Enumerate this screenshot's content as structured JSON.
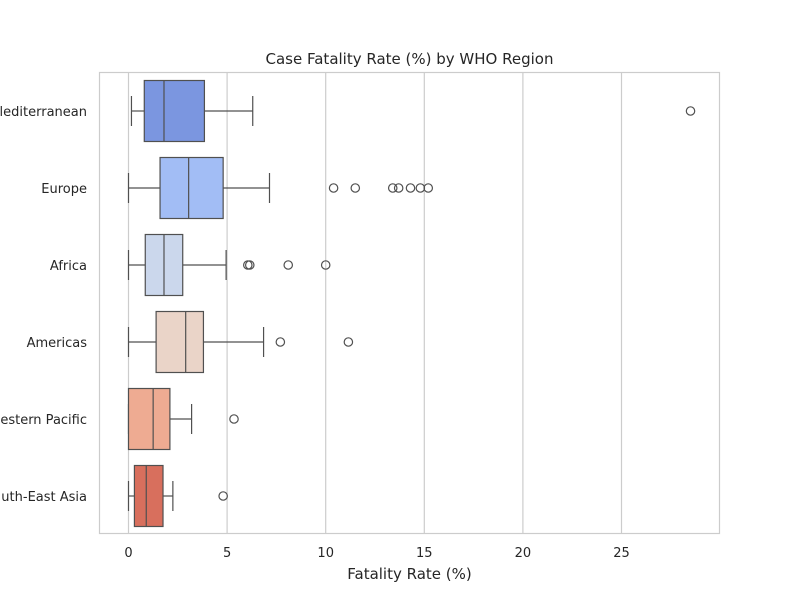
{
  "chart_data": {
    "type": "boxplot",
    "orientation": "horizontal",
    "title": "Case Fatality Rate (%) by WHO Region",
    "xlabel": "Fatality Rate (%)",
    "ylabel": "",
    "xlim": [
      -1.5,
      30
    ],
    "xticks": [
      0,
      5,
      10,
      15,
      20,
      25
    ],
    "grid": "vertical",
    "categories": [
      "Eastern Mediterranean",
      "Europe",
      "Africa",
      "Americas",
      "Western Pacific",
      "South-East Asia"
    ],
    "category_labels_shown": [
      "lediterranean",
      "Europe",
      "Africa",
      "Americas",
      "estern Pacific",
      "uth-East Asia"
    ],
    "boxes": [
      {
        "region": "Eastern Mediterranean",
        "whisker_low": 0.15,
        "q1": 0.8,
        "median": 1.8,
        "q3": 3.85,
        "whisker_high": 6.3,
        "outliers": [
          28.5
        ],
        "color": "#7b96e0"
      },
      {
        "region": "Europe",
        "whisker_low": 0.0,
        "q1": 1.6,
        "median": 3.05,
        "q3": 4.8,
        "whisker_high": 7.15,
        "outliers": [
          10.4,
          11.5,
          13.4,
          13.7,
          14.3,
          14.8,
          15.2
        ],
        "color": "#a2bdf5"
      },
      {
        "region": "Africa",
        "whisker_low": 0.0,
        "q1": 0.85,
        "median": 1.8,
        "q3": 2.75,
        "whisker_high": 4.95,
        "outliers": [
          6.05,
          6.15,
          8.1,
          10.0
        ],
        "color": "#cbd7ec"
      },
      {
        "region": "Americas",
        "whisker_low": 0.0,
        "q1": 1.4,
        "median": 2.9,
        "q3": 3.8,
        "whisker_high": 6.85,
        "outliers": [
          7.7,
          11.15
        ],
        "color": "#ead4c8"
      },
      {
        "region": "Western Pacific",
        "whisker_low": 0.0,
        "q1": 0.0,
        "median": 1.25,
        "q3": 2.1,
        "whisker_high": 3.2,
        "outliers": [
          5.35
        ],
        "color": "#eeab92"
      },
      {
        "region": "South-East Asia",
        "whisker_low": 0.0,
        "q1": 0.3,
        "median": 0.9,
        "q3": 1.75,
        "whisker_high": 2.25,
        "outliers": [
          4.8
        ],
        "color": "#d86f5d"
      }
    ]
  }
}
